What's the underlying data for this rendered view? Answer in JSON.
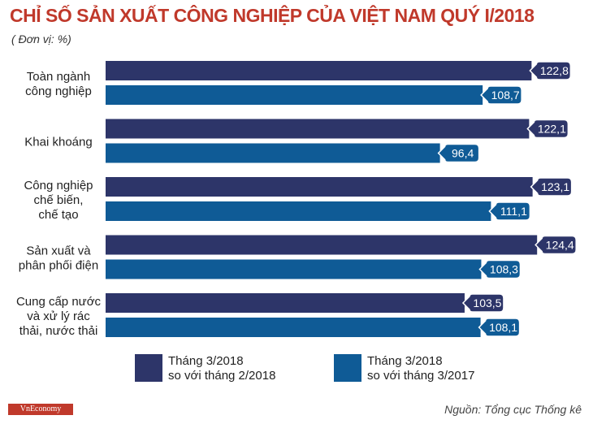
{
  "title": "CHỈ SỐ SẢN XUẤT CÔNG NGHIỆP CỦA VIỆT NAM QUÝ I/2018",
  "unit": "( Đơn vị: %)",
  "source": "Nguồn: Tổng cục Thống kê",
  "logo": "VnEconomy",
  "colors": {
    "title": "#c0392b",
    "series1": "#2d3569",
    "series2": "#0f5b96"
  },
  "chart_data": {
    "type": "bar",
    "orientation": "horizontal",
    "categories": [
      [
        "Toàn ngành",
        "công nghiệp"
      ],
      [
        "Khai khoáng"
      ],
      [
        "Công nghiệp",
        "chế biến,",
        "chế tạo"
      ],
      [
        "Sản xuất và",
        "phân phối điện"
      ],
      [
        "Cung cấp nước",
        "và xử lý rác",
        "thải, nước thải"
      ]
    ],
    "series": [
      {
        "name": "Tháng 3/2018 so với tháng 2/2018",
        "legend_lines": [
          "Tháng 3/2018",
          "so với tháng 2/2018"
        ],
        "values": [
          122.8,
          122.1,
          123.1,
          124.4,
          103.5
        ],
        "labels": [
          "122,8",
          "122,1",
          "123,1",
          "124,4",
          "103,5"
        ]
      },
      {
        "name": "Tháng 3/2018 so với tháng 3/2017",
        "legend_lines": [
          "Tháng 3/2018",
          "so với tháng 3/2017"
        ],
        "values": [
          108.7,
          96.4,
          111.1,
          108.3,
          108.1
        ],
        "labels": [
          "108,7",
          "96,4",
          "111,1",
          "108,3",
          "108,1"
        ]
      }
    ]
  }
}
